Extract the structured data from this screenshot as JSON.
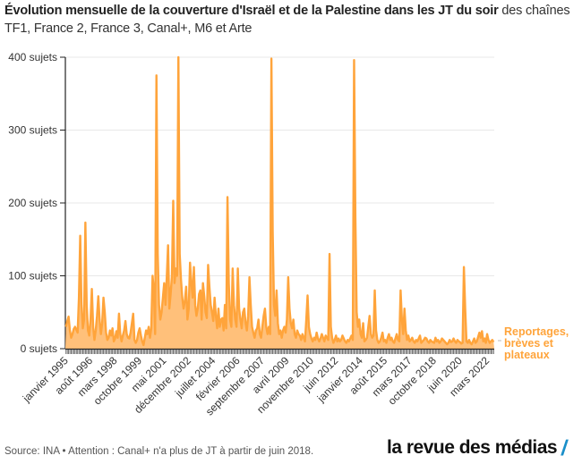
{
  "title": {
    "bold": "Évolution mensuelle de la couverture d'Israël et de la Palestine dans les JT du soir",
    "rest": " des chaînes TF1, France 2, France 3, Canal+, M6 et Arte"
  },
  "footer": {
    "source": "Source: INA • Attention : Canal+ n'a plus de JT à partir de juin 2018.",
    "brand": "la revue des médias",
    "brand_slash": "/"
  },
  "colors": {
    "line": "#ffa43b",
    "fill": "#ffc07a",
    "grid": "#e8e8e8",
    "axis": "#222222",
    "brand_accent": "#1a8fc9"
  },
  "chart_data": {
    "type": "area",
    "title": "Évolution mensuelle de la couverture d'Israël et de la Palestine dans les JT du soir des chaînes TF1, France 2, France 3, Canal+, M6 et Arte",
    "xlabel": "",
    "ylabel": "",
    "start": "janvier 1995",
    "frequency": "monthly",
    "ylim": [
      0,
      400
    ],
    "grid": true,
    "yticks": [
      {
        "value": 0,
        "label": "0 sujets"
      },
      {
        "value": 100,
        "label": "100 sujets"
      },
      {
        "value": 200,
        "label": "200 sujets"
      },
      {
        "value": 300,
        "label": "300 sujets"
      },
      {
        "value": 400,
        "label": "400 sujets"
      }
    ],
    "xticks": [
      {
        "index": 0,
        "label": "janvier 1995"
      },
      {
        "index": 19,
        "label": "août 1996"
      },
      {
        "index": 38,
        "label": "mars 1998"
      },
      {
        "index": 57,
        "label": "octobre 1999"
      },
      {
        "index": 76,
        "label": "mai 2001"
      },
      {
        "index": 95,
        "label": "décembre 2002"
      },
      {
        "index": 114,
        "label": "juillet 2004"
      },
      {
        "index": 133,
        "label": "février 2006"
      },
      {
        "index": 152,
        "label": "septembre 2007"
      },
      {
        "index": 171,
        "label": "avril 2009"
      },
      {
        "index": 190,
        "label": "novembre 2010"
      },
      {
        "index": 209,
        "label": "juin 2012"
      },
      {
        "index": 228,
        "label": "janvier 2014"
      },
      {
        "index": 247,
        "label": "août 2015"
      },
      {
        "index": 266,
        "label": "mars 2017"
      },
      {
        "index": 285,
        "label": "octobre 2018"
      },
      {
        "index": 305,
        "label": "juin 2020"
      },
      {
        "index": 326,
        "label": "mars 2022"
      }
    ],
    "legend": {
      "label": "Reportages, brèves et plateaux",
      "placement": "right-end"
    },
    "series": [
      {
        "name": "Reportages, brèves et plateaux",
        "values": [
          30,
          38,
          44,
          25,
          15,
          20,
          27,
          30,
          26,
          22,
          70,
          155,
          60,
          28,
          40,
          173,
          60,
          25,
          18,
          40,
          82,
          30,
          12,
          25,
          45,
          72,
          40,
          20,
          35,
          70,
          50,
          22,
          12,
          15,
          25,
          18,
          28,
          10,
          14,
          24,
          15,
          48,
          20,
          10,
          18,
          25,
          38,
          20,
          15,
          14,
          22,
          35,
          48,
          12,
          8,
          12,
          22,
          28,
          18,
          10,
          5,
          15,
          25,
          20,
          30,
          15,
          28,
          100,
          80,
          20,
          375,
          130,
          60,
          40,
          50,
          70,
          90,
          60,
          98,
          142,
          55,
          75,
          100,
          203,
          90,
          110,
          100,
          400,
          130,
          95,
          70,
          55,
          65,
          85,
          40,
          55,
          118,
          90,
          70,
          112,
          60,
          45,
          55,
          75,
          80,
          40,
          90,
          72,
          50,
          42,
          115,
          85,
          60,
          50,
          38,
          70,
          45,
          28,
          55,
          30,
          40,
          42,
          25,
          60,
          28,
          208,
          90,
          40,
          30,
          110,
          60,
          40,
          30,
          110,
          55,
          40,
          28,
          50,
          55,
          35,
          25,
          45,
          98,
          60,
          30,
          22,
          15,
          25,
          28,
          40,
          20,
          15,
          30,
          45,
          55,
          30,
          20,
          30,
          20,
          398,
          160,
          60,
          45,
          80,
          35,
          20,
          25,
          15,
          25,
          30,
          22,
          40,
          98,
          55,
          35,
          28,
          40,
          20,
          15,
          25,
          20,
          18,
          12,
          20,
          15,
          10,
          40,
          73,
          30,
          20,
          14,
          10,
          15,
          12,
          22,
          14,
          10,
          14,
          20,
          15,
          10,
          18,
          15,
          12,
          130,
          30,
          15,
          8,
          12,
          18,
          10,
          14,
          10,
          12,
          18,
          14,
          10,
          8,
          12,
          10,
          14,
          18,
          12,
          396,
          180,
          50,
          30,
          40,
          20,
          15,
          35,
          10,
          12,
          15,
          30,
          45,
          20,
          15,
          18,
          80,
          25,
          12,
          8,
          10,
          15,
          22,
          10,
          12,
          8,
          15,
          20,
          12,
          15,
          10,
          8,
          14,
          20,
          12,
          10,
          80,
          40,
          20,
          55,
          25,
          12,
          18,
          10,
          12,
          15,
          10,
          8,
          12,
          10,
          14,
          18,
          8,
          10,
          12,
          15,
          14,
          10,
          8,
          12,
          10,
          9,
          8,
          15,
          10,
          12,
          8,
          10,
          14,
          12,
          10,
          8,
          6,
          8,
          12,
          9,
          10,
          14,
          10,
          8,
          12,
          10,
          9,
          7,
          8,
          112,
          55,
          10,
          8,
          12,
          8,
          6,
          10,
          14,
          8,
          10,
          16,
          22,
          15,
          24,
          10,
          14,
          8,
          20,
          12,
          8,
          10,
          12,
          9
        ]
      }
    ]
  }
}
